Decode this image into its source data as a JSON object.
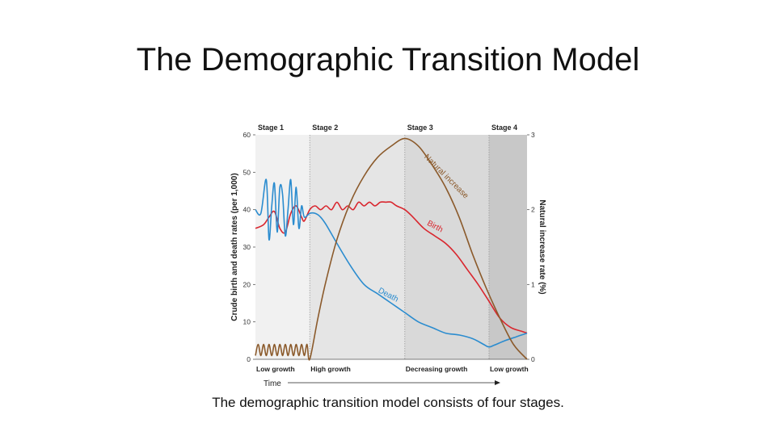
{
  "slide": {
    "title": "The Demographic Transition Model",
    "caption": "The demographic transition model consists of four stages."
  },
  "chart_data": {
    "type": "line",
    "xlabel": "Time",
    "ylabel_left": "Crude birth and death rates (per 1,000)",
    "ylabel_right": "Natural increase rate (%)",
    "ylim_left": [
      0,
      60
    ],
    "ylim_right": [
      0,
      3
    ],
    "yticks_left": [
      "0",
      "10",
      "20",
      "30",
      "40",
      "50",
      "60"
    ],
    "yticks_right": [
      "0",
      "1",
      "2",
      "3"
    ],
    "stages": [
      {
        "name": "Stage 1",
        "growth": "Low growth",
        "x_start": 0,
        "x_end": 20,
        "color": "#f1f1f1"
      },
      {
        "name": "Stage 2",
        "growth": "High growth",
        "x_start": 20,
        "x_end": 55,
        "color": "#e5e5e5"
      },
      {
        "name": "Stage 3",
        "growth": "Decreasing growth",
        "x_start": 55,
        "x_end": 86,
        "color": "#d9d9d9"
      },
      {
        "name": "Stage 4",
        "growth": "Low growth",
        "x_start": 86,
        "x_end": 100,
        "color": "#c8c8c8"
      }
    ],
    "series": [
      {
        "name": "Birth",
        "color": "#d9262e",
        "axis": "left",
        "x": [
          0,
          3,
          5,
          7,
          9,
          11,
          13,
          15,
          17,
          18,
          20,
          22,
          24,
          26,
          28,
          30,
          32,
          34,
          36,
          38,
          40,
          42,
          44,
          46,
          48,
          50,
          52,
          55,
          58,
          62,
          66,
          70,
          74,
          78,
          82,
          86,
          90,
          94,
          98,
          100
        ],
        "y": [
          35,
          36,
          38,
          39.5,
          35,
          34,
          39,
          41,
          38,
          37,
          40,
          41,
          40,
          41,
          40,
          42,
          40,
          41,
          40,
          42,
          41,
          42,
          41,
          42,
          42,
          42,
          41,
          40,
          38,
          35,
          33,
          31,
          28,
          24,
          20,
          15.5,
          11,
          8.5,
          7.5,
          7
        ]
      },
      {
        "name": "Death",
        "color": "#2b8ccf",
        "axis": "left",
        "x": [
          0,
          2,
          4,
          5,
          6,
          7,
          8,
          9,
          10,
          11,
          12,
          13,
          14,
          15,
          16,
          17,
          18,
          20,
          22,
          24,
          26,
          30,
          35,
          40,
          45,
          50,
          55,
          60,
          65,
          70,
          75,
          80,
          84,
          86,
          88,
          92,
          96,
          100
        ],
        "y": [
          40,
          39,
          48,
          32,
          41,
          47,
          34,
          46,
          44,
          33,
          40,
          48,
          36,
          46,
          35,
          41,
          38,
          39,
          39,
          38,
          36,
          31,
          25,
          20,
          17.5,
          15,
          12.5,
          10,
          8.5,
          7,
          6.5,
          5.5,
          4,
          3.3,
          3.8,
          5,
          6,
          7
        ]
      },
      {
        "name": "Natural increase",
        "color": "#8b5a2b",
        "axis": "right",
        "x": [
          0,
          1,
          2,
          3,
          4,
          5,
          6,
          7,
          8,
          9,
          10,
          11,
          12,
          13,
          14,
          15,
          16,
          17,
          18,
          19,
          20,
          23,
          26,
          30,
          35,
          40,
          45,
          50,
          55,
          60,
          65,
          70,
          75,
          80,
          85,
          90,
          95,
          100
        ],
        "y": [
          0.05,
          0.2,
          0.05,
          0.2,
          0.05,
          0.2,
          0.05,
          0.2,
          0.05,
          0.2,
          0.05,
          0.2,
          0.05,
          0.2,
          0.05,
          0.2,
          0.05,
          0.2,
          0.05,
          0.2,
          0,
          0.55,
          1.05,
          1.6,
          2.1,
          2.45,
          2.7,
          2.85,
          2.95,
          2.85,
          2.6,
          2.3,
          1.9,
          1.4,
          0.95,
          0.55,
          0.2,
          0
        ]
      }
    ],
    "annotations": [
      {
        "text": "Birth",
        "series": "Birth",
        "x": 63,
        "y": 36
      },
      {
        "text": "Death",
        "series": "Death",
        "x": 45,
        "y": 18
      },
      {
        "text": "Natural increase",
        "series": "Natural increase",
        "x": 62,
        "y": 2.7
      }
    ],
    "grid": false
  }
}
